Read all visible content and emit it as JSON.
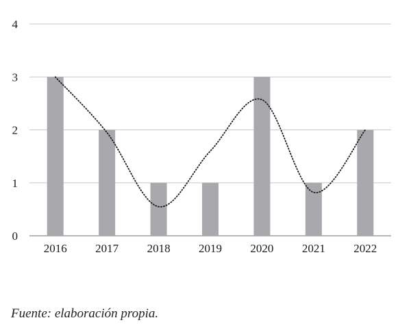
{
  "chart_data": {
    "type": "bar",
    "categories": [
      "2016",
      "2017",
      "2018",
      "2019",
      "2020",
      "2021",
      "2022"
    ],
    "series": [
      {
        "values": [
          3,
          2,
          1,
          1,
          3,
          1,
          2
        ]
      }
    ],
    "trendline": {
      "style": "dotted",
      "kind": "smoothed polynomial",
      "values": [
        3.0,
        1.95,
        0.55,
        1.6,
        2.57,
        0.82,
        2.0
      ]
    },
    "title": "",
    "xlabel": "",
    "ylabel": "",
    "ylim": [
      0,
      4
    ],
    "yticks": [
      "0",
      "1",
      "2",
      "3",
      "4"
    ],
    "grid": true,
    "legend": "none",
    "colors": {
      "bar": "#a9a8ad",
      "grid": "#c8c8c8",
      "axis": "#8a8a8a",
      "trendline": "#1a1a1a"
    }
  },
  "source": "Fuente: elaboración propia."
}
